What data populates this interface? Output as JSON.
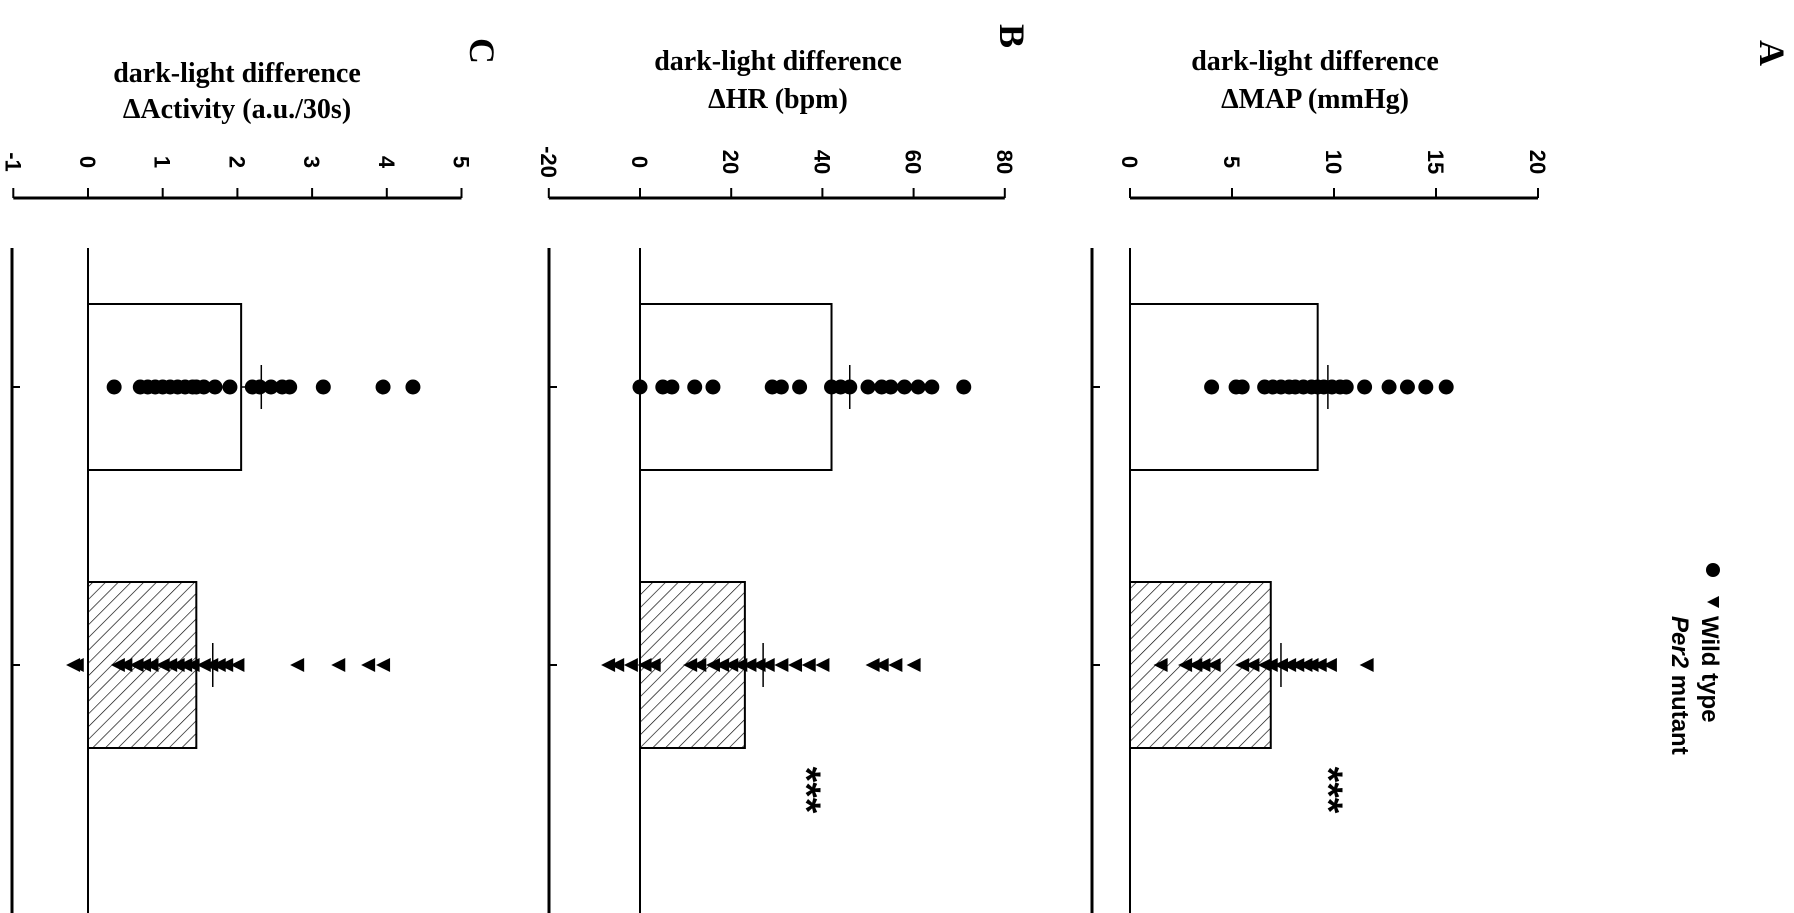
{
  "legend": {
    "wt_label": "Wild type",
    "mut_label_italic": "Per2",
    "mut_label_rest": " mutant"
  },
  "chart_data": [
    {
      "type": "bar",
      "panel_label": "A",
      "ylabel_line1": "dark-light difference",
      "ylabel_line2": "ΔMAP (mmHg)",
      "ylim": [
        0,
        20
      ],
      "ticks": [
        0,
        5,
        10,
        15,
        20
      ],
      "tick_labels": [
        "0",
        "5",
        "10",
        "15",
        "20"
      ],
      "categories": [
        "Wild type",
        "Per2 mutant"
      ],
      "series": [
        {
          "name": "Wild type",
          "mean": 9.2,
          "sem": 0.5,
          "points": [
            4.0,
            5.2,
            5.5,
            6.6,
            7.0,
            7.4,
            7.8,
            8.1,
            8.5,
            8.9,
            9.2,
            9.5,
            9.9,
            10.3,
            10.6,
            11.5,
            12.7,
            13.6,
            14.5,
            15.5
          ]
        },
        {
          "name": "Per2 mutant",
          "mean": 6.9,
          "sem": 0.5,
          "points": [
            1.5,
            2.7,
            3.2,
            3.6,
            4.1,
            5.5,
            6.0,
            6.6,
            6.9,
            7.4,
            7.8,
            8.2,
            8.6,
            8.9,
            9.3,
            9.8,
            11.6
          ]
        }
      ],
      "significance": "***"
    },
    {
      "type": "bar",
      "panel_label": "B",
      "ylabel_line1": "dark-light difference",
      "ylabel_line2": "ΔHR (bpm)",
      "ylim": [
        -20,
        80
      ],
      "ticks": [
        -20,
        0,
        20,
        40,
        60,
        80
      ],
      "tick_labels": [
        "-20",
        "0",
        "20",
        "40",
        "60",
        "80"
      ],
      "categories": [
        "Wild type",
        "Per2 mutant"
      ],
      "series": [
        {
          "name": "Wild type",
          "mean": 42,
          "sem": 4,
          "points": [
            0,
            5,
            7,
            12,
            16,
            29,
            31,
            35,
            42,
            44,
            46,
            50,
            53,
            55,
            58,
            61,
            64,
            71
          ]
        },
        {
          "name": "Per2 mutant",
          "mean": 23,
          "sem": 4,
          "points": [
            -7,
            -5,
            -2,
            1,
            3,
            11,
            13,
            16,
            18,
            20,
            22,
            24,
            26,
            28,
            31,
            34,
            37,
            40,
            51,
            53,
            56,
            60
          ]
        }
      ],
      "significance": "***"
    },
    {
      "type": "bar",
      "panel_label": "C",
      "ylabel_line1": "dark-light difference",
      "ylabel_line2": "ΔActivity (a.u./30s)",
      "ylim": [
        -1,
        5
      ],
      "ticks": [
        -1,
        0,
        1,
        2,
        3,
        4,
        5
      ],
      "tick_labels": [
        "-1",
        "0",
        "1",
        "2",
        "3",
        "4",
        "5"
      ],
      "categories": [
        "Wild type",
        "Per2 mutant"
      ],
      "series": [
        {
          "name": "Wild type",
          "mean": 2.05,
          "sem": 0.27,
          "points": [
            0.35,
            0.7,
            0.8,
            0.9,
            1.0,
            1.1,
            1.2,
            1.3,
            1.4,
            1.45,
            1.55,
            1.7,
            1.9,
            2.2,
            2.3,
            2.45,
            2.6,
            2.7,
            3.15,
            3.95,
            4.35
          ]
        },
        {
          "name": "Per2 mutant",
          "mean": 1.45,
          "sem": 0.22,
          "points": [
            -0.2,
            -0.15,
            0.4,
            0.5,
            0.65,
            0.75,
            0.85,
            1.0,
            1.1,
            1.2,
            1.3,
            1.4,
            1.55,
            1.65,
            1.75,
            1.85,
            2.0,
            2.8,
            3.35,
            3.75,
            3.95
          ]
        }
      ],
      "significance": ""
    }
  ]
}
